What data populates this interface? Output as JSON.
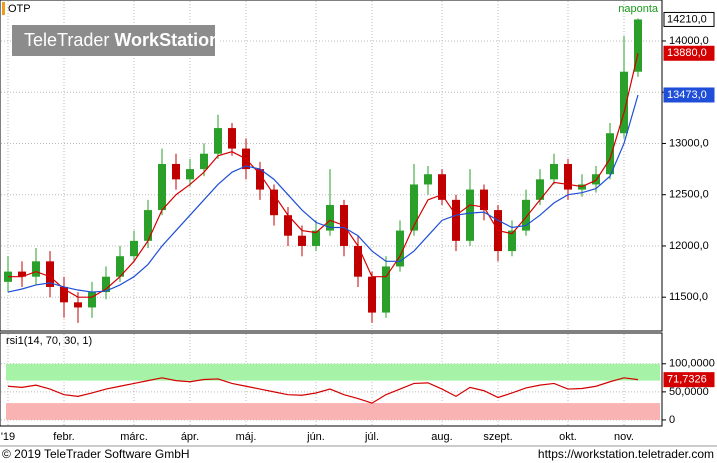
{
  "logo": {
    "brand": "TeleTrader",
    "product": "WorkStation"
  },
  "footer": {
    "copyright": "© 2019 TeleTrader Software GmbH",
    "url": "https://workstation.teletrader.com"
  },
  "chart_data": [
    {
      "type": "candlestick",
      "title": "OTP",
      "annotation": "naponta",
      "categories": [
        "'19",
        null,
        null,
        null,
        "febr.",
        null,
        null,
        null,
        null,
        "márc.",
        null,
        null,
        null,
        "ápr.",
        null,
        null,
        null,
        "máj.",
        null,
        null,
        null,
        null,
        "jún.",
        null,
        null,
        null,
        "júl.",
        null,
        null,
        null,
        null,
        "aug.",
        null,
        null,
        null,
        "szept.",
        null,
        null,
        null,
        null,
        "okt.",
        null,
        null,
        null,
        "nov.",
        null
      ],
      "open": [
        11650,
        11750,
        11700,
        11850,
        11600,
        11450,
        11400,
        11550,
        11700,
        11900,
        12050,
        12350,
        12800,
        12650,
        12750,
        12900,
        13150,
        12950,
        12750,
        12550,
        12300,
        12100,
        12000,
        12150,
        12400,
        12000,
        11700,
        11350,
        11800,
        12150,
        12600,
        12700,
        12450,
        12050,
        12550,
        12350,
        11950,
        12150,
        12450,
        12650,
        12800,
        12550,
        12600,
        12700,
        13100,
        13700
      ],
      "high": [
        11900,
        11850,
        11980,
        11950,
        11700,
        11550,
        11650,
        11800,
        12000,
        12150,
        12450,
        12950,
        12900,
        12850,
        13000,
        13280,
        13200,
        13050,
        12820,
        12600,
        12380,
        12200,
        12250,
        12750,
        12450,
        12100,
        11750,
        11900,
        12250,
        12800,
        12780,
        12750,
        12500,
        12750,
        12600,
        12400,
        12250,
        12550,
        12750,
        12900,
        12850,
        12700,
        12780,
        13200,
        14050,
        14220
      ],
      "low": [
        11550,
        11600,
        11620,
        11500,
        11300,
        11250,
        11300,
        11480,
        11650,
        11850,
        11980,
        12300,
        12550,
        12580,
        12680,
        12850,
        12880,
        12650,
        12450,
        12200,
        12000,
        11900,
        11950,
        12100,
        11900,
        11600,
        11250,
        11300,
        11750,
        12100,
        12500,
        12400,
        11950,
        12000,
        12250,
        11850,
        11900,
        12100,
        12400,
        12600,
        12450,
        12480,
        12520,
        12650,
        13050,
        13650
      ],
      "close": [
        11750,
        11700,
        11850,
        11600,
        11450,
        11400,
        11550,
        11700,
        11900,
        12050,
        12350,
        12800,
        12650,
        12750,
        12900,
        13150,
        12950,
        12750,
        12550,
        12300,
        12100,
        12000,
        12150,
        12400,
        12000,
        11700,
        11350,
        11800,
        12150,
        12600,
        12700,
        12450,
        12050,
        12550,
        12350,
        11950,
        12150,
        12450,
        12650,
        12800,
        12550,
        12600,
        12700,
        13100,
        13700,
        14210
      ],
      "last_label": "14210,0",
      "up_color": "#2aa02a",
      "down_color": "#c00000",
      "lines": [
        {
          "color": "#d40000",
          "last_label": "13880,0",
          "values": [
            11700,
            11700,
            11750,
            11700,
            11580,
            11500,
            11500,
            11580,
            11700,
            11850,
            12050,
            12350,
            12500,
            12600,
            12720,
            12880,
            12920,
            12850,
            12700,
            12500,
            12300,
            12150,
            12130,
            12250,
            12200,
            12000,
            11700,
            11700,
            11900,
            12200,
            12450,
            12500,
            12300,
            12400,
            12380,
            12150,
            12120,
            12280,
            12450,
            12620,
            12600,
            12580,
            12640,
            12850,
            13300,
            13880
          ]
        },
        {
          "color": "#1f4fd8",
          "last_label": "13473,0",
          "values": [
            11550,
            11580,
            11620,
            11640,
            11600,
            11570,
            11550,
            11560,
            11620,
            11700,
            11820,
            12000,
            12150,
            12300,
            12450,
            12600,
            12720,
            12780,
            12750,
            12650,
            12500,
            12350,
            12230,
            12180,
            12180,
            12100,
            11950,
            11850,
            11850,
            11950,
            12100,
            12250,
            12300,
            12320,
            12330,
            12250,
            12180,
            12200,
            12300,
            12420,
            12500,
            12520,
            12560,
            12680,
            13000,
            13473
          ]
        }
      ],
      "ylim": [
        11180,
        14390
      ],
      "yticks": [
        {
          "value": 11500,
          "label": "11500,0"
        },
        {
          "value": 12000,
          "label": "12000,0"
        },
        {
          "value": 12500,
          "label": "12500,0"
        },
        {
          "value": 13000,
          "label": "13000,0"
        },
        {
          "value": 13500,
          "label": "13500,0"
        },
        {
          "value": 14000,
          "label": "14000,0"
        }
      ],
      "grid": true
    },
    {
      "type": "line",
      "title": "rsi1(14, 70, 30, 1)",
      "color": "#d40000",
      "last_label": "71,7326",
      "values": [
        60,
        58,
        62,
        55,
        45,
        42,
        48,
        55,
        60,
        65,
        70,
        75,
        70,
        68,
        72,
        73,
        65,
        60,
        55,
        50,
        45,
        44,
        48,
        55,
        45,
        38,
        30,
        45,
        55,
        65,
        66,
        55,
        42,
        58,
        52,
        40,
        48,
        57,
        62,
        65,
        55,
        56,
        60,
        68,
        75,
        71.7326
      ],
      "bands": [
        {
          "range": [
            70,
            100
          ],
          "color": "#a6f2a6"
        },
        {
          "range": [
            0,
            30
          ],
          "color": "#f9b3b3"
        }
      ],
      "ylim": [
        -9,
        153
      ],
      "yticks": [
        0,
        {
          "value": 50,
          "label": "50,0000"
        },
        {
          "value": 100,
          "label": "100,0000"
        }
      ],
      "grid": true
    }
  ]
}
